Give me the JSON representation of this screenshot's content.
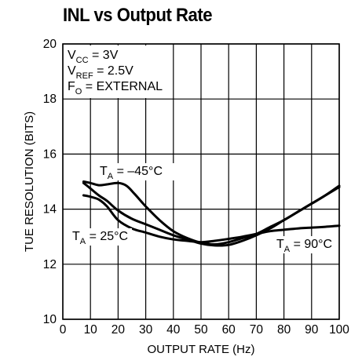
{
  "chart_data": {
    "type": "line",
    "title": "INL vs Output Rate",
    "xlabel": "OUTPUT RATE (Hz)",
    "ylabel": "TUE RESOLUTION (BITS)",
    "xlim": [
      0,
      100
    ],
    "ylim": [
      10,
      20
    ],
    "x_ticks": [
      0,
      10,
      20,
      30,
      40,
      50,
      60,
      70,
      80,
      90,
      100
    ],
    "y_ticks": [
      10,
      12,
      14,
      16,
      18,
      20
    ],
    "grid": true,
    "legend": "none",
    "conditions": [
      {
        "main": "V",
        "sub": "CC",
        "rest": " = 3V"
      },
      {
        "main": "V",
        "sub": "REF",
        "rest": " = 2.5V"
      },
      {
        "main": "F",
        "sub": "O",
        "rest": " = EXTERNAL"
      }
    ],
    "annotations": [
      {
        "main": "T",
        "sub": "A",
        "rest": " = –45°C"
      },
      {
        "main": "T",
        "sub": "A",
        "rest": " = 25°C"
      },
      {
        "main": "T",
        "sub": "A",
        "rest": " = 90°C"
      }
    ],
    "series": [
      {
        "x": [
          7.5,
          10,
          13,
          16,
          20,
          23,
          26,
          30,
          35,
          40,
          45,
          50,
          55,
          60,
          65,
          70,
          75,
          80,
          85,
          90,
          95,
          100
        ],
        "y": [
          15.0,
          14.95,
          14.87,
          14.9,
          14.95,
          14.85,
          14.55,
          14.1,
          13.6,
          13.2,
          12.95,
          12.78,
          12.72,
          12.8,
          12.95,
          13.1,
          13.35,
          13.6,
          13.9,
          14.2,
          14.5,
          14.8
        ]
      },
      {
        "x": [
          7.5,
          10,
          13,
          16,
          20,
          25,
          30,
          35,
          40,
          45,
          50,
          55,
          60,
          65,
          70,
          75,
          80,
          85,
          90,
          95,
          100
        ],
        "y": [
          14.5,
          14.45,
          14.35,
          14.1,
          13.6,
          13.3,
          13.15,
          13.0,
          12.9,
          12.85,
          12.8,
          12.85,
          12.92,
          13.0,
          13.1,
          13.2,
          13.25,
          13.3,
          13.33,
          13.36,
          13.4
        ]
      },
      {
        "x": [
          7.5,
          10,
          13,
          16,
          20,
          25,
          30,
          35,
          40,
          45,
          50,
          55,
          60,
          65,
          70,
          75,
          80,
          85,
          90,
          95,
          100
        ],
        "y": [
          14.95,
          14.75,
          14.5,
          14.3,
          13.95,
          13.65,
          13.45,
          13.25,
          13.05,
          12.9,
          12.75,
          12.68,
          12.7,
          12.85,
          13.05,
          13.3,
          13.6,
          13.9,
          14.2,
          14.5,
          14.85
        ]
      }
    ]
  }
}
